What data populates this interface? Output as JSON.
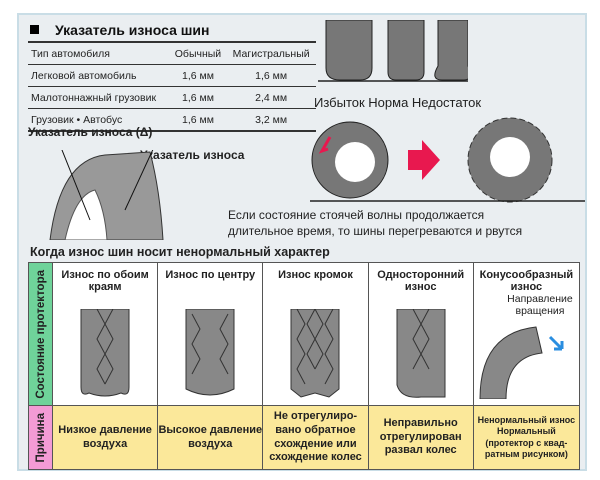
{
  "title": "Указатель износа шин",
  "table": {
    "headers": [
      "Тип автомобиля",
      "Обычный",
      "Магистральный"
    ],
    "rows": [
      [
        "Легковой автомобиль",
        "1,6 мм",
        "1,6 мм"
      ],
      [
        "Малотоннажный грузовик",
        "1,6 мм",
        "2,4 мм"
      ],
      [
        "Грузовик • Автобус",
        "1,6 мм",
        "3,2 мм"
      ]
    ]
  },
  "pressure_labels": "Избыток Норма Недостаток",
  "indicator_delta": "Указатель износа (Δ)",
  "indicator": "Указатель износа",
  "wave_note_1": "Если состояние стоячей волны продолжается",
  "wave_note_2": "длительное время, то шины перегреваются и рвутся",
  "abnormal_title": "Когда износ шин носит ненормальный характер",
  "row_tread": "Состояние протектора",
  "row_cause": "Причина",
  "columns": [
    {
      "wear": "Износ по обоим краям",
      "cause": "Низкое давление воздуха"
    },
    {
      "wear": "Износ по центру",
      "cause": "Высокое давление воздуха"
    },
    {
      "wear": "Износ кромок",
      "cause": "Не отрегулиро-вано обратное схождение или схождение колес"
    },
    {
      "wear": "Односторонний износ",
      "cause": "Неправильно отрегулирован развал колес"
    },
    {
      "wear": "Конусообразный износ",
      "cause": "Ненормальный износ Нормальный (протектор с квад-ратным рисунком)"
    }
  ],
  "rotation": "Направление вращения",
  "colors": {
    "tread_row": "#6fd39a",
    "cause_row": "#f39bd5",
    "cause_bg": "#fbe89a",
    "arrow": "#e8184f",
    "frame": "#c9dde6"
  }
}
